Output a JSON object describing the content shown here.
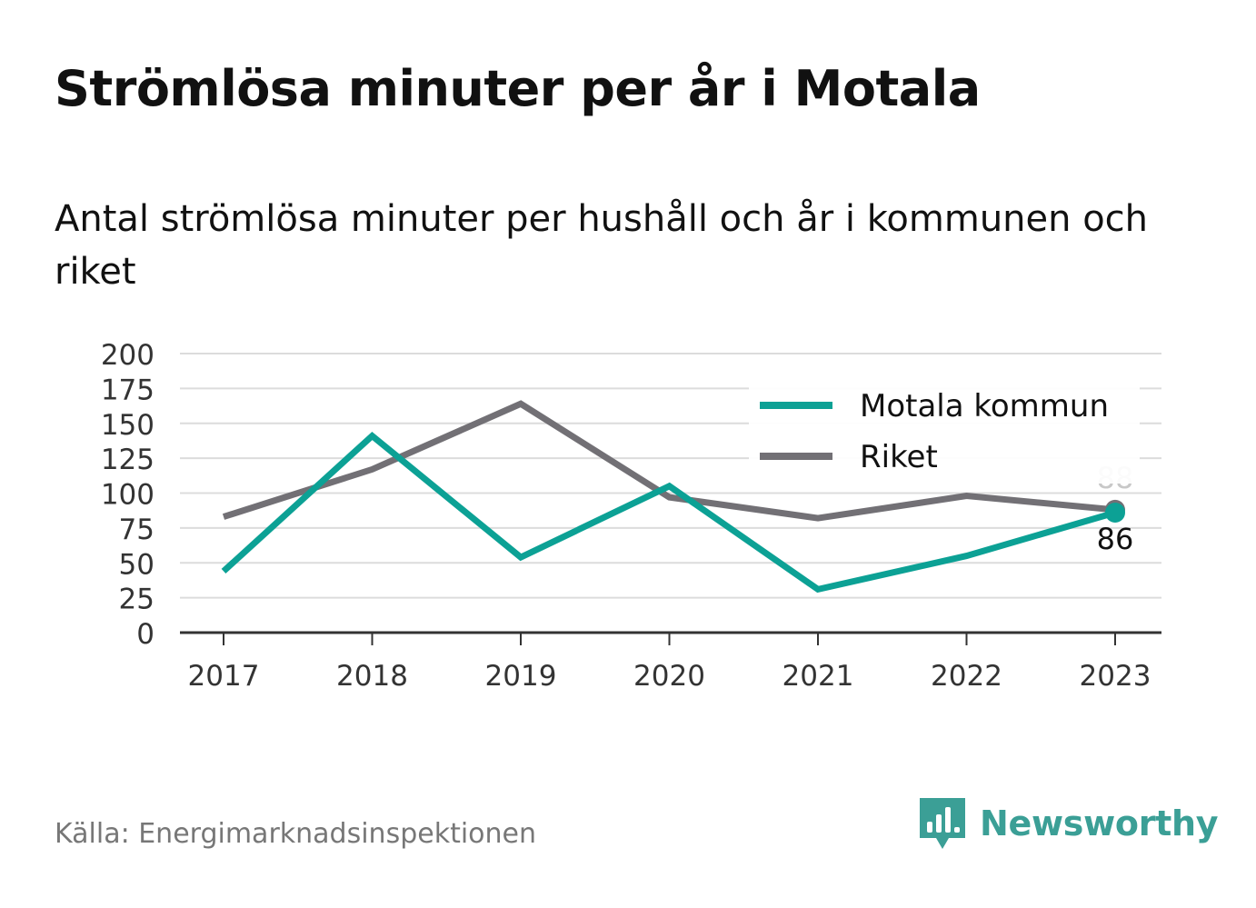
{
  "title": "Strömlösa minuter per år i Motala",
  "subtitle": "Antal strömlösa minuter per hushåll och år i kommunen och riket",
  "source": "Källa: Energimarknadsinspektionen",
  "brand": {
    "label": "Newsworthy",
    "icon": "newsworthy-logo-icon",
    "color": "#3b9f96"
  },
  "chart_data": {
    "type": "line",
    "x": [
      "2017",
      "2018",
      "2019",
      "2020",
      "2021",
      "2022",
      "2023"
    ],
    "ylim": [
      0,
      200
    ],
    "yticks": [
      0,
      25,
      50,
      75,
      100,
      125,
      150,
      175,
      200
    ],
    "grid": true,
    "legend_position": "top-right",
    "series": [
      {
        "name": "Motala kommun",
        "color": "#0ca195",
        "values": [
          44,
          141,
          54,
          105,
          31,
          55,
          86
        ],
        "end_label": "86"
      },
      {
        "name": "Riket",
        "color": "#727075",
        "values": [
          83,
          117,
          164,
          97,
          82,
          98,
          88
        ],
        "end_label": "88"
      }
    ]
  }
}
